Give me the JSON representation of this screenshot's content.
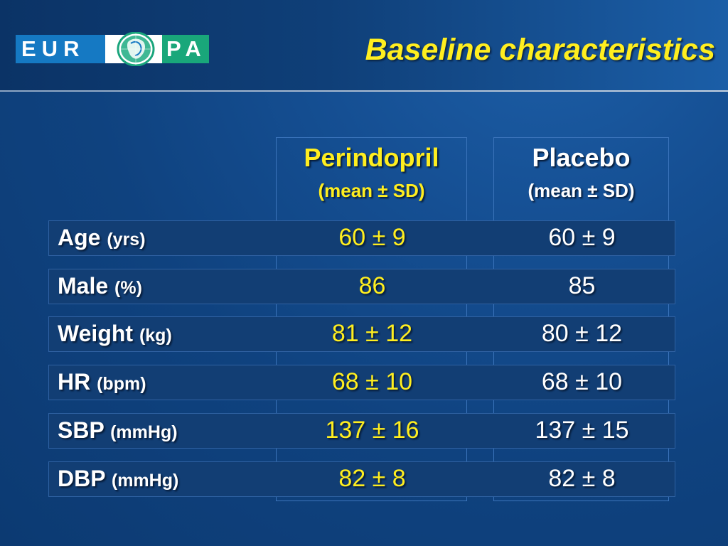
{
  "logo": {
    "left_text": "EUR",
    "right_text": "PA",
    "colors": {
      "blue": "#1579c3",
      "green": "#19a77a"
    }
  },
  "title": "Baseline characteristics",
  "columns": [
    {
      "name": "Perindopril",
      "sub": "(mean ± SD)",
      "color": "#ffee1f"
    },
    {
      "name": "Placebo",
      "sub": "(mean ± SD)",
      "color": "#ffffff"
    }
  ],
  "rows": [
    {
      "label": "Age",
      "unit": "(yrs)",
      "perindopril": "60 ± 9",
      "placebo": "60 ± 9"
    },
    {
      "label": "Male",
      "unit": "(%)",
      "perindopril": "86",
      "placebo": "85"
    },
    {
      "label": "Weight",
      "unit": "(kg)",
      "perindopril": "81 ± 12",
      "placebo": "80 ± 12"
    },
    {
      "label": "HR",
      "unit": "(bpm)",
      "perindopril": "68 ± 10",
      "placebo": "68 ± 10"
    },
    {
      "label": "SBP",
      "unit": "(mmHg)",
      "perindopril": "137 ± 16",
      "placebo": "137 ± 15"
    },
    {
      "label": "DBP",
      "unit": "(mmHg)",
      "perindopril": "82 ± 8",
      "placebo": "82 ± 8"
    }
  ]
}
